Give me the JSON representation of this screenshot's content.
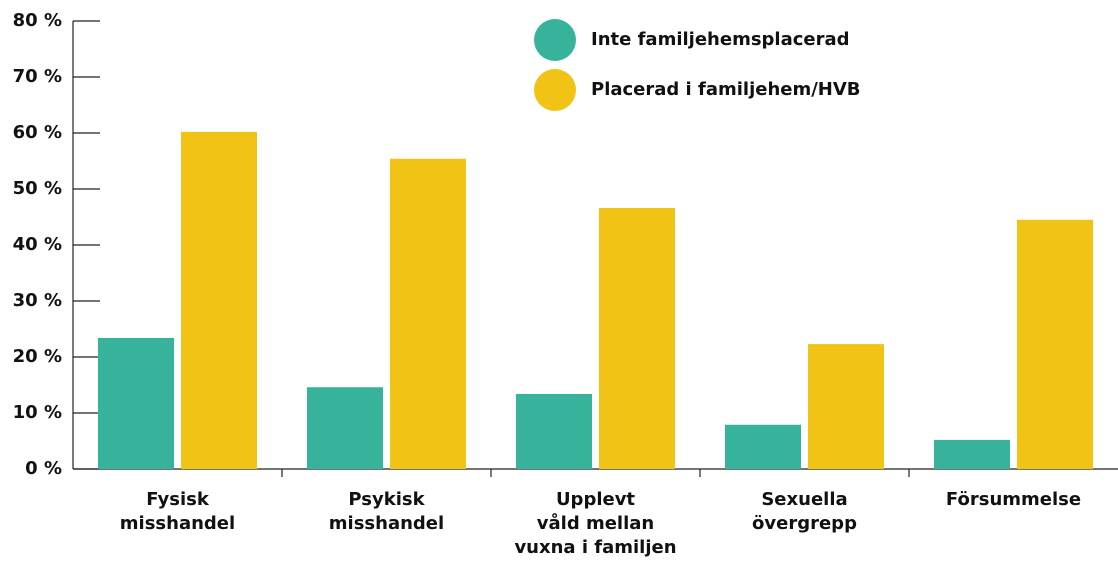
{
  "chart_data": {
    "type": "bar",
    "categories": [
      "Fysisk\nmisshandel",
      "Psykisk\nmisshandel",
      "Upplevt\nvåld mellan\nvuxna i familjen",
      "Sexuella\növergrepp",
      "Försummelse"
    ],
    "series": [
      {
        "name": "Inte familjehemsplacerad",
        "color": "#36b39a",
        "values": [
          23.4,
          14.6,
          13.4,
          7.9,
          5.2
        ]
      },
      {
        "name": "Placerad i familjehem/HVB",
        "color": "#f0c314",
        "values": [
          60.2,
          55.4,
          46.6,
          22.3,
          44.5
        ]
      }
    ],
    "ylim": [
      0,
      80
    ],
    "yticks": [
      {
        "value": 0,
        "label": "0 %"
      },
      {
        "value": 10,
        "label": "10 %"
      },
      {
        "value": 20,
        "label": "20 %"
      },
      {
        "value": 30,
        "label": "30 %"
      },
      {
        "value": 40,
        "label": "40 %"
      },
      {
        "value": 50,
        "label": "50 %"
      },
      {
        "value": 60,
        "label": "60 %"
      },
      {
        "value": 70,
        "label": "70 %"
      },
      {
        "value": 80,
        "label": "80 %"
      }
    ],
    "legend": "top-right"
  }
}
